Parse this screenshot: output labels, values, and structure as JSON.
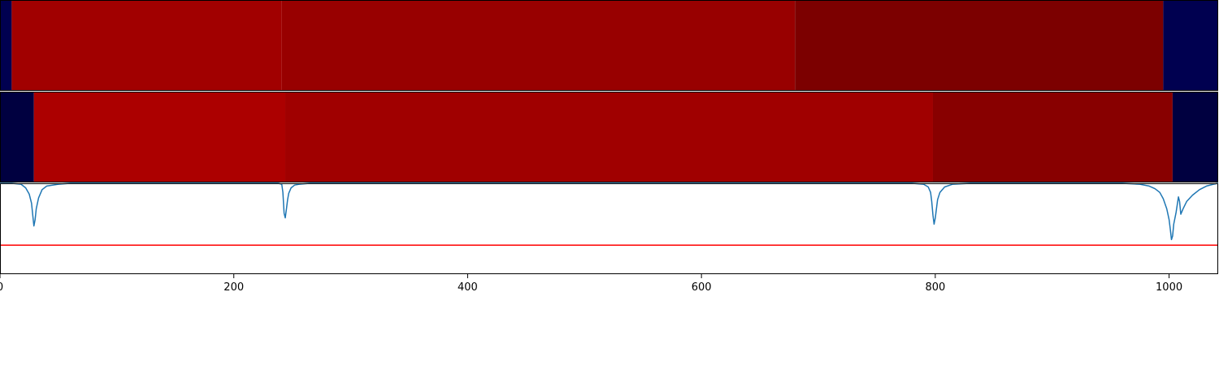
{
  "chart_data": [
    {
      "type": "heatmap",
      "panel": "track-1",
      "xlim": [
        0,
        1042
      ],
      "segments": [
        {
          "start": 0,
          "end": 10,
          "color": "#000050"
        },
        {
          "start": 10,
          "end": 241,
          "color": "#a10000"
        },
        {
          "start": 241,
          "end": 680,
          "color": "#980000"
        },
        {
          "start": 680,
          "end": 995,
          "color": "#7c0000"
        },
        {
          "start": 995,
          "end": 1042,
          "color": "#000050"
        }
      ]
    },
    {
      "type": "heatmap",
      "panel": "track-2",
      "xlim": [
        0,
        1042
      ],
      "segments": [
        {
          "start": 0,
          "end": 29,
          "color": "#000040"
        },
        {
          "start": 29,
          "end": 244,
          "color": "#ac0000"
        },
        {
          "start": 244,
          "end": 798,
          "color": "#a00000"
        },
        {
          "start": 798,
          "end": 1003,
          "color": "#880000"
        },
        {
          "start": 1003,
          "end": 1042,
          "color": "#000040"
        }
      ]
    },
    {
      "type": "line",
      "panel": "signal",
      "xlim": [
        0,
        1042
      ],
      "ylim": [
        0,
        1
      ],
      "xticks": [
        0,
        200,
        400,
        600,
        800,
        1000
      ],
      "series": [
        {
          "color": "#1f77b4",
          "x": [
            0,
            10,
            18,
            22,
            25,
            27,
            28,
            29,
            30,
            31,
            33,
            36,
            40,
            50,
            60,
            80,
            200,
            238,
            241,
            242,
            243,
            244,
            245,
            246,
            247,
            249,
            252,
            256,
            265,
            300,
            500,
            700,
            780,
            790,
            794,
            796,
            797,
            798,
            799,
            800,
            801,
            802,
            804,
            808,
            815,
            830,
            900,
            960,
            975,
            983,
            988,
            992,
            995,
            998,
            1000,
            1001,
            1002,
            1003,
            1004,
            1006,
            1008,
            1009,
            1010,
            1012,
            1015,
            1020,
            1026,
            1032,
            1038,
            1042
          ],
          "y": [
            1,
            1,
            0.99,
            0.95,
            0.88,
            0.78,
            0.65,
            0.53,
            0.6,
            0.72,
            0.84,
            0.93,
            0.97,
            0.99,
            1,
            1,
            1,
            1,
            0.99,
            0.9,
            0.67,
            0.62,
            0.72,
            0.82,
            0.89,
            0.95,
            0.98,
            0.99,
            1,
            1,
            1,
            1,
            1,
            0.99,
            0.96,
            0.9,
            0.8,
            0.65,
            0.55,
            0.62,
            0.72,
            0.82,
            0.9,
            0.96,
            0.99,
            1,
            1,
            1,
            0.99,
            0.97,
            0.94,
            0.9,
            0.83,
            0.72,
            0.6,
            0.5,
            0.38,
            0.42,
            0.55,
            0.68,
            0.85,
            0.8,
            0.66,
            0.72,
            0.8,
            0.87,
            0.93,
            0.97,
            0.99,
            1
          ]
        },
        {
          "color": "#ff0000",
          "x": [
            0,
            1042
          ],
          "y": [
            0.32,
            0.32
          ]
        }
      ]
    }
  ]
}
